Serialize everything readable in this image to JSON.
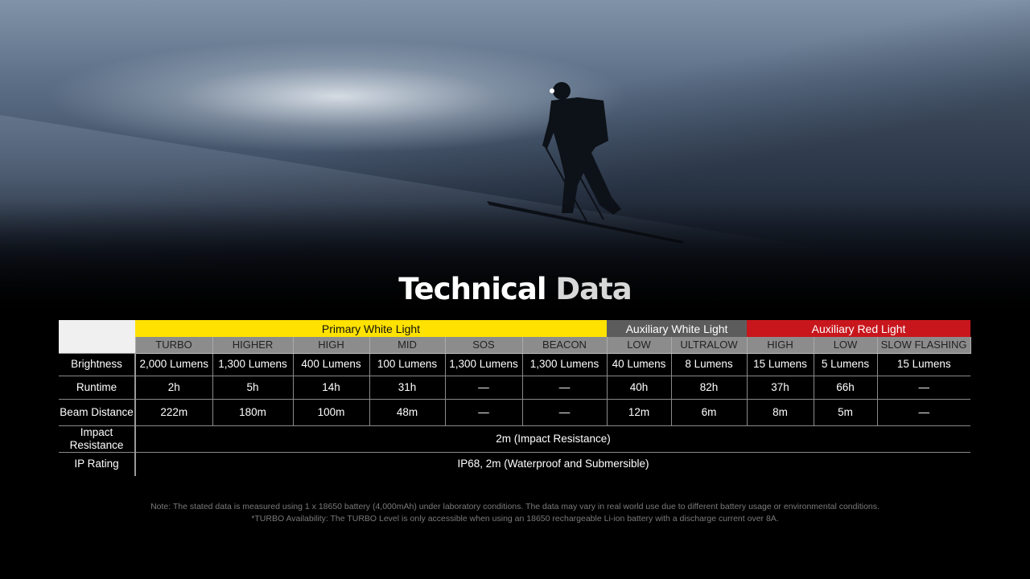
{
  "title": {
    "part1": "Technical",
    "part2": "Data"
  },
  "colors": {
    "primary_white": "#ffe200",
    "auxiliary_white": "#5c5c5c",
    "auxiliary_red": "#c8161d",
    "mode_row": "#8c8c8c"
  },
  "groups": [
    {
      "label": "Primary White Light",
      "color": "#ffe200",
      "text_color": "#111"
    },
    {
      "label": "Auxiliary White Light",
      "color": "#5c5c5c",
      "text_color": "#fff"
    },
    {
      "label": "Auxiliary Red Light",
      "color": "#c8161d",
      "text_color": "#fff"
    }
  ],
  "modes": [
    "TURBO",
    "HIGHER",
    "HIGH",
    "MID",
    "SOS",
    "BEACON",
    "LOW",
    "ULTRALOW",
    "HIGH",
    "LOW",
    "SLOW FLASHING"
  ],
  "rows": [
    {
      "label": "Brightness",
      "values": [
        "2,000 Lumens",
        "1,300 Lumens",
        "400 Lumens",
        "100 Lumens",
        "1,300 Lumens",
        "1,300 Lumens",
        "40 Lumens",
        "8 Lumens",
        "15 Lumens",
        "5 Lumens",
        "15 Lumens"
      ]
    },
    {
      "label": "Runtime",
      "values": [
        "2h",
        "5h",
        "14h",
        "31h",
        "—",
        "—",
        "40h",
        "82h",
        "37h",
        "66h",
        "—"
      ]
    },
    {
      "label": "Beam Distance",
      "values": [
        "222m",
        "180m",
        "100m",
        "48m",
        "—",
        "—",
        "12m",
        "6m",
        "8m",
        "5m",
        "—"
      ]
    }
  ],
  "impact": {
    "label": "Impact Resistance",
    "value": "2m (Impact Resistance)"
  },
  "ip": {
    "label": "IP Rating",
    "value": "IP68, 2m (Waterproof and Submersible)"
  },
  "notes": [
    "Note: The stated data is measured using 1 x 18650 battery (4,000mAh) under laboratory conditions. The data may vary in real world use due to different battery usage or environmental conditions.",
    "*TURBO Availability: The TURBO Level is only accessible when using an 18650 rechargeable Li-ion battery with a discharge current over 8A."
  ]
}
